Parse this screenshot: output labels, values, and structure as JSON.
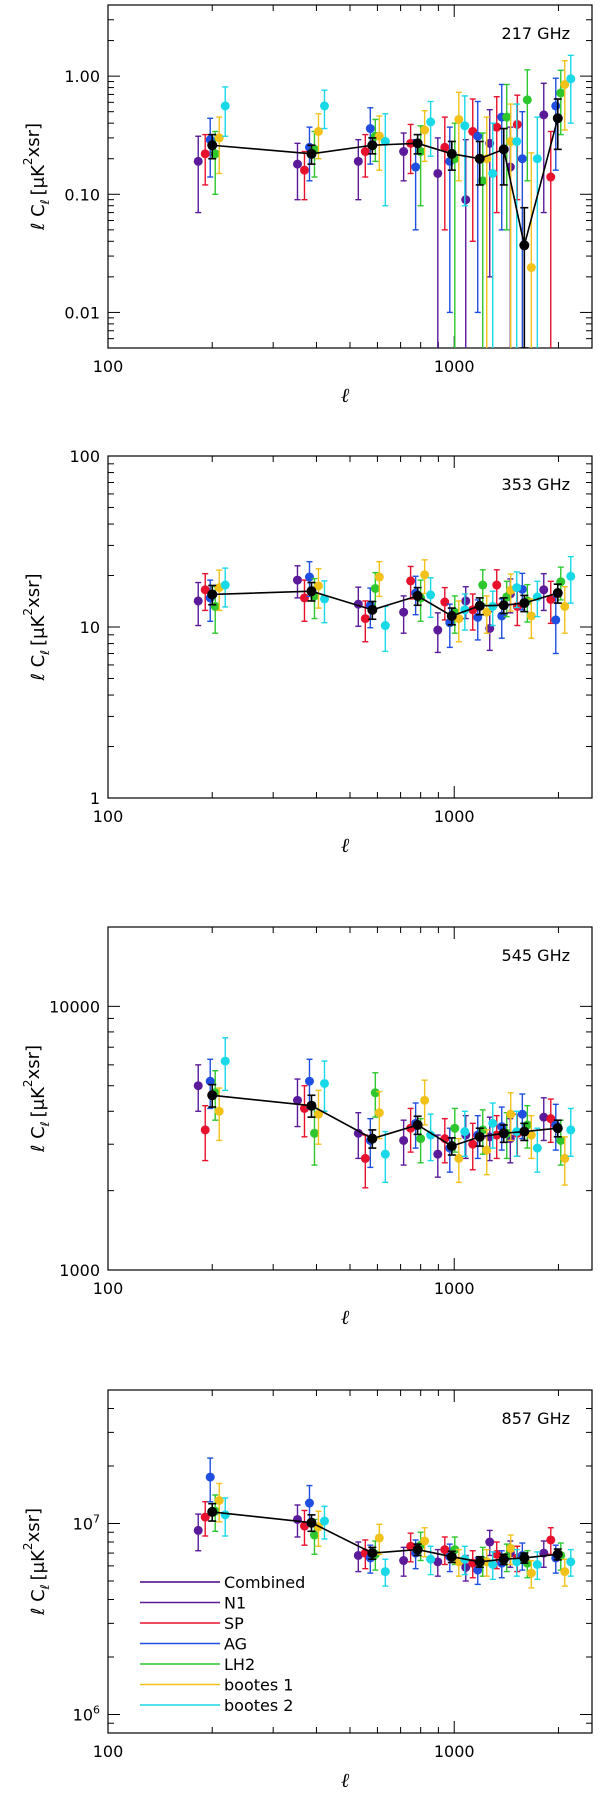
{
  "figure_title": "",
  "legend": {
    "placement": "bottom-left of 857 GHz panel",
    "entries": [
      {
        "name": "Combined",
        "color": "#4B0082"
      },
      {
        "name": "N1",
        "color": "#5A1A9A"
      },
      {
        "name": "SP",
        "color": "#E8112D"
      },
      {
        "name": "AG",
        "color": "#1F4FE0"
      },
      {
        "name": "LH2",
        "color": "#2EC82E"
      },
      {
        "name": "bootes 1",
        "color": "#F2C21B"
      },
      {
        "name": "bootes 2",
        "color": "#19D8E8"
      }
    ]
  },
  "combined_color": "#000000",
  "chart_data": [
    {
      "type": "scatter",
      "title": "217 GHz",
      "xlabel": "ℓ",
      "ylabel_parts": {
        "prefix": "ℓ C",
        "sub": "ℓ",
        "bracket_open": "[",
        "unit_mu": "μ",
        "unit_k": "K",
        "sup": "2",
        "unit_rest": "xsr",
        "bracket_close": "]"
      },
      "xscale": "log",
      "yscale": "log",
      "xlim": [
        100,
        2500
      ],
      "ylim": [
        0.005,
        4.0
      ],
      "xticks": [
        {
          "value": 100,
          "label": "100"
        },
        {
          "value": 1000,
          "label": "1000"
        }
      ],
      "yticks": [
        {
          "value": 0.01,
          "label": "0.01"
        },
        {
          "value": 0.1,
          "label": "0.10"
        },
        {
          "value": 1.0,
          "label": "1.00"
        }
      ],
      "ell": [
        200,
        387,
        580,
        784,
        984,
        1185,
        1390,
        1594,
        1991
      ],
      "combined": {
        "y": [
          0.26,
          0.22,
          0.26,
          0.27,
          0.22,
          0.2,
          0.24,
          0.037,
          0.44
        ],
        "err": [
          0.06,
          0.04,
          0.04,
          0.05,
          0.06,
          0.08,
          0.12,
          0.04,
          0.2
        ]
      },
      "fields": [
        {
          "name": "N1",
          "y": [
            0.19,
            0.18,
            0.19,
            0.23,
            0.15,
            0.09,
            0.27,
            0.17,
            0.47
          ],
          "err": [
            0.12,
            0.09,
            0.1,
            0.1,
            0.15,
            0.2,
            0.25,
            0.2,
            0.4
          ]
        },
        {
          "name": "SP",
          "y": [
            0.22,
            0.16,
            0.23,
            0.27,
            0.25,
            0.34,
            0.37,
            0.39,
            0.14
          ],
          "err": [
            0.1,
            0.07,
            0.09,
            0.12,
            0.2,
            0.3,
            0.3,
            0.3,
            0.2
          ]
        },
        {
          "name": "AG",
          "y": [
            0.29,
            0.25,
            0.36,
            0.17,
            0.19,
            0.31,
            0.45,
            0.2,
            0.56
          ],
          "err": [
            0.15,
            0.12,
            0.18,
            0.12,
            0.18,
            0.3,
            0.4,
            0.3,
            0.4
          ]
        },
        {
          "name": "LH2",
          "y": [
            0.22,
            0.24,
            0.31,
            0.23,
            0.2,
            0.13,
            0.45,
            0.63,
            0.72
          ],
          "err": [
            0.12,
            0.1,
            0.12,
            0.15,
            0.2,
            0.2,
            0.4,
            0.5,
            0.4
          ]
        },
        {
          "name": "bootes 1",
          "y": [
            0.3,
            0.34,
            0.31,
            0.35,
            0.43,
            0.2,
            0.28,
            0.024,
            0.85
          ],
          "err": [
            0.15,
            0.14,
            0.15,
            0.16,
            0.3,
            0.25,
            0.3,
            0.2,
            0.5
          ]
        },
        {
          "name": "bootes 2",
          "y": [
            0.56,
            0.56,
            0.28,
            0.41,
            0.38,
            0.15,
            0.28,
            0.2,
            0.95
          ],
          "err": [
            0.25,
            0.2,
            0.2,
            0.2,
            0.3,
            0.25,
            0.3,
            0.25,
            0.55
          ]
        }
      ]
    },
    {
      "type": "scatter",
      "title": "353 GHz",
      "xlabel": "ℓ",
      "ylabel_parts": {
        "prefix": "ℓ C",
        "sub": "ℓ",
        "bracket_open": "[",
        "unit_mu": "μ",
        "unit_k": "K",
        "sup": "2",
        "unit_rest": "xsr",
        "bracket_close": "]"
      },
      "xscale": "log",
      "yscale": "log",
      "xlim": [
        100,
        2500
      ],
      "ylim": [
        1,
        100
      ],
      "xticks": [
        {
          "value": 100,
          "label": "100"
        },
        {
          "value": 1000,
          "label": "1000"
        }
      ],
      "yticks": [
        {
          "value": 1,
          "label": "1"
        },
        {
          "value": 10,
          "label": "10"
        },
        {
          "value": 100,
          "label": "100"
        }
      ],
      "ell": [
        200,
        387,
        580,
        784,
        984,
        1185,
        1390,
        1594,
        1991
      ],
      "combined": {
        "y": [
          15.5,
          16.2,
          12.6,
          15.2,
          11.6,
          13.3,
          13.4,
          13.8,
          15.8
        ],
        "err": [
          2.0,
          2.0,
          1.5,
          1.8,
          1.3,
          1.5,
          1.4,
          1.5,
          2.0
        ]
      },
      "fields": [
        {
          "name": "N1",
          "y": [
            14.2,
            18.8,
            13.6,
            12.2,
            9.6,
            14.2,
            9.8,
            15.6,
            16.5
          ],
          "err": [
            4,
            4,
            3.5,
            3,
            2.5,
            3,
            2.5,
            3.5,
            4
          ]
        },
        {
          "name": "SP",
          "y": [
            16.5,
            14.8,
            11.2,
            18.6,
            14.0,
            12.6,
            17.6,
            13.2,
            14.5
          ],
          "err": [
            4,
            4,
            3,
            4,
            3,
            3,
            4,
            3,
            4
          ]
        },
        {
          "name": "AG",
          "y": [
            14.8,
            19.6,
            13.4,
            15.8,
            10.6,
            11.4,
            11.6,
            16.6,
            11.0
          ],
          "err": [
            4,
            4.5,
            3.5,
            4,
            3,
            3,
            3,
            4,
            4
          ]
        },
        {
          "name": "LH2",
          "y": [
            13.2,
            15.2,
            16.8,
            14.8,
            12.2,
            17.6,
            15.0,
            14.2,
            18.4
          ],
          "err": [
            4,
            4,
            4,
            4,
            3,
            4,
            3.5,
            3.5,
            4
          ]
        },
        {
          "name": "bootes 1",
          "y": [
            17.0,
            17.4,
            19.6,
            20.2,
            11.2,
            12.2,
            16.4,
            11.6,
            13.2
          ],
          "err": [
            4.5,
            4.5,
            4.5,
            4.5,
            3,
            3,
            4,
            3,
            4
          ]
        },
        {
          "name": "bootes 2",
          "y": [
            17.6,
            14.6,
            10.2,
            15.4,
            12.6,
            13.2,
            17.0,
            15.0,
            19.8
          ],
          "err": [
            4.5,
            4,
            3,
            4,
            3,
            3,
            4,
            3.5,
            6
          ]
        }
      ]
    },
    {
      "type": "scatter",
      "title": "545 GHz",
      "xlabel": "ℓ",
      "ylabel_parts": {
        "prefix": "ℓ C",
        "sub": "ℓ",
        "bracket_open": "[",
        "unit_mu": "μ",
        "unit_k": "K",
        "sup": "2",
        "unit_rest": "xsr",
        "bracket_close": "]"
      },
      "xscale": "log",
      "yscale": "log",
      "xlim": [
        100,
        2500
      ],
      "ylim": [
        1000,
        20000
      ],
      "xticks": [
        {
          "value": 100,
          "label": "100"
        },
        {
          "value": 1000,
          "label": "1000"
        }
      ],
      "yticks": [
        {
          "value": 1000,
          "label": "1000"
        },
        {
          "value": 10000,
          "label": "10000"
        }
      ],
      "ell": [
        200,
        387,
        580,
        784,
        984,
        1185,
        1390,
        1594,
        1991
      ],
      "combined": {
        "y": [
          4600,
          4200,
          3150,
          3550,
          2950,
          3200,
          3300,
          3350,
          3450
        ],
        "err": [
          450,
          400,
          250,
          280,
          220,
          250,
          250,
          250,
          250
        ]
      },
      "fields": [
        {
          "name": "N1",
          "y": [
            5000,
            4400,
            3300,
            3100,
            2750,
            3250,
            3200,
            3150,
            3800
          ],
          "err": [
            1000,
            900,
            650,
            600,
            500,
            600,
            600,
            600,
            700
          ]
        },
        {
          "name": "SP",
          "y": [
            3400,
            4100,
            2650,
            3450,
            3150,
            3000,
            3250,
            3300,
            3750
          ],
          "err": [
            800,
            900,
            600,
            650,
            600,
            600,
            600,
            600,
            700
          ]
        },
        {
          "name": "AG",
          "y": [
            5200,
            5200,
            3100,
            3600,
            2900,
            3250,
            3500,
            3900,
            3550
          ],
          "err": [
            1100,
            1100,
            650,
            700,
            550,
            600,
            650,
            750,
            700
          ]
        },
        {
          "name": "LH2",
          "y": [
            4700,
            3300,
            4700,
            3150,
            3450,
            3400,
            3300,
            3550,
            3100
          ],
          "err": [
            1000,
            800,
            900,
            600,
            650,
            650,
            650,
            650,
            600
          ]
        },
        {
          "name": "bootes 1",
          "y": [
            4000,
            3900,
            3950,
            4400,
            2650,
            2850,
            3900,
            3250,
            2650
          ],
          "err": [
            900,
            900,
            800,
            850,
            500,
            550,
            800,
            600,
            550
          ]
        },
        {
          "name": "bootes 2",
          "y": [
            6200,
            5100,
            2750,
            3250,
            3350,
            3600,
            3350,
            2900,
            3400
          ],
          "err": [
            1400,
            1100,
            600,
            650,
            650,
            700,
            650,
            550,
            700
          ]
        }
      ]
    },
    {
      "type": "scatter",
      "title": "857 GHz",
      "xlabel": "ℓ",
      "ylabel_parts": {
        "prefix": "ℓ C",
        "sub": "ℓ",
        "bracket_open": "[",
        "unit_mu": "μ",
        "unit_k": "K",
        "sup": "2",
        "unit_rest": "xsr",
        "bracket_close": "]"
      },
      "xscale": "log",
      "yscale": "log",
      "xlim": [
        100,
        2500
      ],
      "ylim": [
        800000,
        50000000
      ],
      "xticks": [
        {
          "value": 100,
          "label": "100"
        },
        {
          "value": 1000,
          "label": "1000"
        }
      ],
      "yticks": [
        {
          "value": 1000000,
          "label_base": "10",
          "label_exp": "6"
        },
        {
          "value": 10000000,
          "label_base": "10",
          "label_exp": "7"
        }
      ],
      "ell": [
        200,
        387,
        580,
        784,
        984,
        1185,
        1390,
        1594,
        1991
      ],
      "combined": {
        "y": [
          11500000,
          10100000,
          7000000,
          7300000,
          6700000,
          6300000,
          6500000,
          6600000,
          6900000
        ],
        "err": [
          1200000,
          1000000,
          500000,
          500000,
          450000,
          400000,
          400000,
          400000,
          450000
        ]
      },
      "fields": [
        {
          "name": "N1",
          "y": [
            9200000,
            10500000,
            6800000,
            6400000,
            6300000,
            5900000,
            8000000,
            7000000,
            7000000
          ],
          "err": [
            2000000,
            2000000,
            1200000,
            1100000,
            1000000,
            900000,
            1200000,
            1100000,
            1100000
          ]
        },
        {
          "name": "SP",
          "y": [
            10800000,
            9700000,
            7000000,
            7600000,
            7300000,
            6200000,
            6900000,
            6600000,
            8200000
          ],
          "err": [
            2200000,
            2000000,
            1200000,
            1300000,
            1200000,
            1000000,
            1100000,
            1000000,
            1300000
          ]
        },
        {
          "name": "AG",
          "y": [
            17500000,
            12800000,
            6600000,
            7000000,
            6700000,
            5700000,
            6200000,
            6800000,
            6600000
          ],
          "err": [
            4500000,
            3000000,
            1100000,
            1200000,
            1100000,
            900000,
            1000000,
            1100000,
            1100000
          ]
        },
        {
          "name": "LH2",
          "y": [
            11600000,
            8700000,
            6900000,
            7700000,
            7300000,
            6400000,
            6700000,
            6200000,
            6800000
          ],
          "err": [
            2500000,
            1800000,
            1200000,
            1300000,
            1200000,
            1100000,
            1100000,
            1000000,
            1100000
          ]
        },
        {
          "name": "bootes 1",
          "y": [
            13200000,
            9600000,
            8400000,
            8100000,
            6300000,
            6300000,
            7400000,
            5500000,
            5600000
          ],
          "err": [
            3000000,
            2000000,
            1500000,
            1400000,
            1000000,
            1000000,
            1300000,
            900000,
            900000
          ]
        },
        {
          "name": "bootes 2",
          "y": [
            11100000,
            10300000,
            5600000,
            6500000,
            6500000,
            6100000,
            6300000,
            6100000,
            6300000
          ],
          "err": [
            2500000,
            2000000,
            900000,
            1100000,
            1100000,
            1000000,
            1000000,
            1000000,
            1000000
          ]
        }
      ]
    }
  ]
}
